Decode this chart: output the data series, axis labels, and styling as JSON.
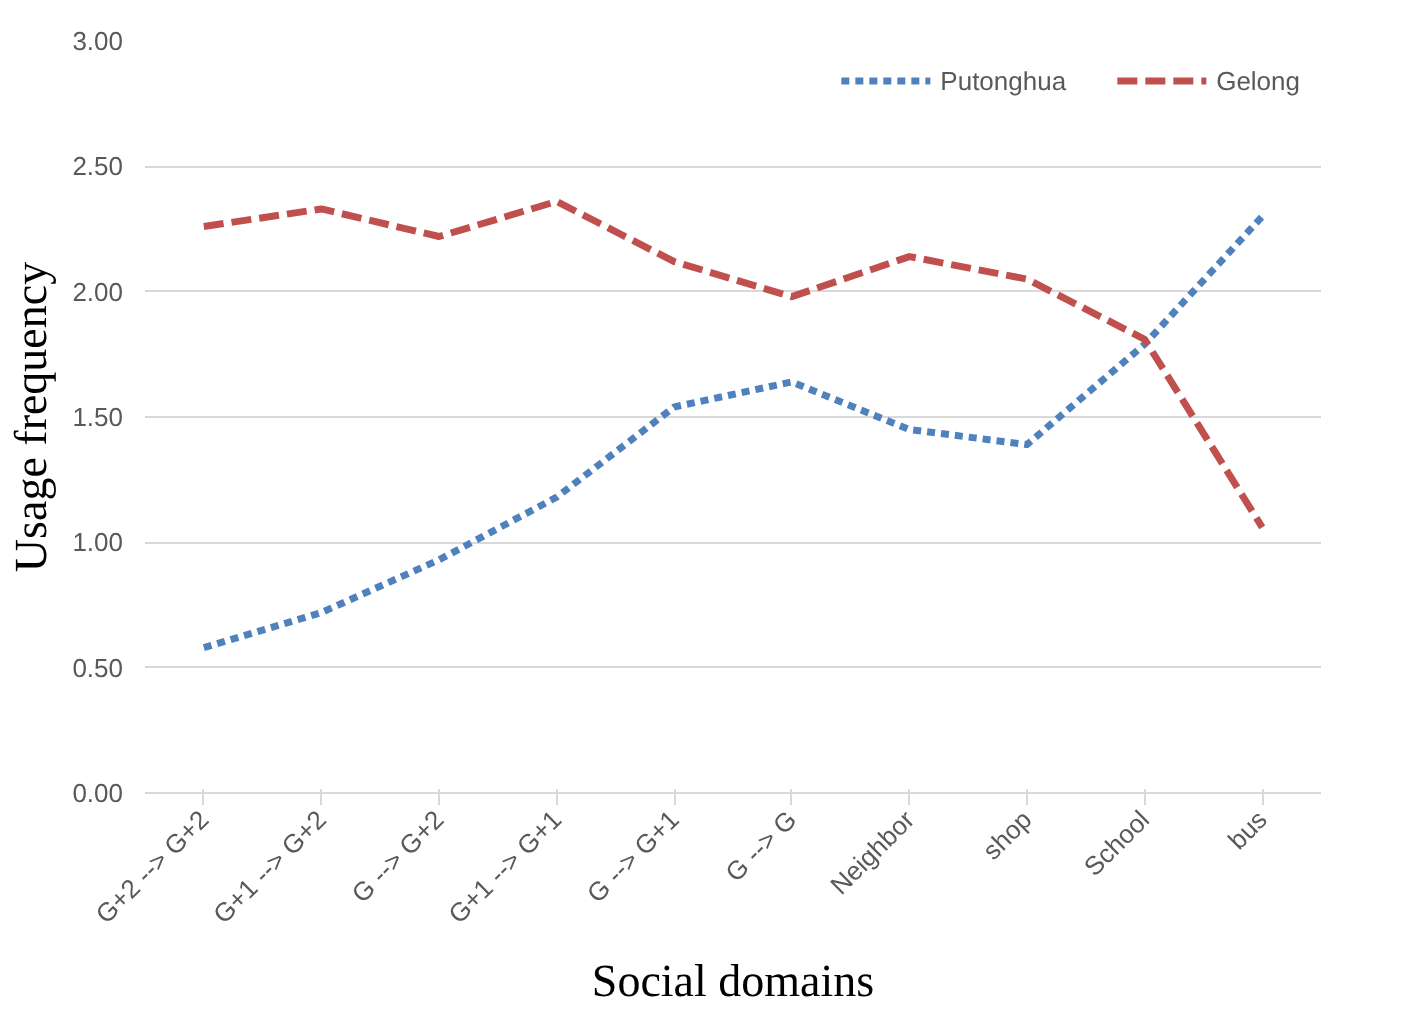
{
  "chart_data": {
    "type": "line",
    "xlabel": "Social domains",
    "ylabel": "Usage frequency",
    "categories": [
      "G+2 --> G+2",
      "G+1 --> G+2",
      "G --> G+2",
      "G+1 --> G+1",
      "G --> G+1",
      "G --> G",
      "Neighbor",
      "shop",
      "School",
      "bus"
    ],
    "series": [
      {
        "name": "Putonghua",
        "color": "#4f81bd",
        "values": [
          0.58,
          0.72,
          0.93,
          1.18,
          1.54,
          1.64,
          1.45,
          1.39,
          1.79,
          2.3
        ]
      },
      {
        "name": "Gelong",
        "color": "#c0504d",
        "values": [
          2.26,
          2.33,
          2.22,
          2.36,
          2.12,
          1.98,
          2.14,
          2.05,
          1.81,
          1.06
        ]
      }
    ],
    "ylim": [
      0,
      3
    ],
    "yticks": [
      {
        "value": 0,
        "label": "0.00"
      },
      {
        "value": 0.5,
        "label": "0.50"
      },
      {
        "value": 1,
        "label": "1.00"
      },
      {
        "value": 1.5,
        "label": "1.50"
      },
      {
        "value": 2,
        "label": "2.00"
      },
      {
        "value": 2.5,
        "label": "2.50"
      },
      {
        "value": 3,
        "label": "3.00"
      }
    ],
    "grid": "y",
    "legend": "top right",
    "marker": "none",
    "line_style": "dashed"
  }
}
